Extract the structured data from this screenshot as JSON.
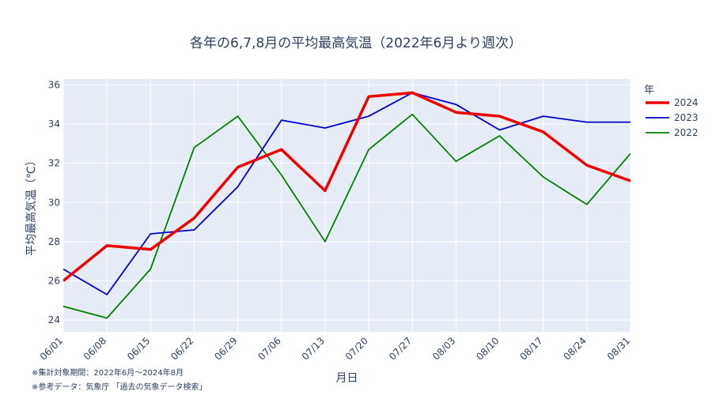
{
  "chart_data": {
    "type": "line",
    "title": "各年の6,7,8月の平均最高気温（2022年6月より週次）",
    "xlabel": "月日",
    "ylabel": "平均最高気温（℃）",
    "categories": [
      "06/01",
      "06/08",
      "06/15",
      "06/22",
      "06/29",
      "07/06",
      "07/13",
      "07/20",
      "07/27",
      "08/03",
      "08/10",
      "08/17",
      "08/24",
      "08/31"
    ],
    "y_ticks": [
      24,
      26,
      28,
      30,
      32,
      34,
      36
    ],
    "ylim": [
      23.4,
      36.3
    ],
    "grid": true,
    "legend_title": "年",
    "legend_position": "top-right",
    "series": [
      {
        "name": "2024",
        "color": "#ee0000",
        "width": 3.5,
        "values": [
          26.0,
          27.8,
          27.6,
          29.2,
          31.8,
          32.7,
          30.6,
          35.4,
          35.6,
          34.6,
          34.4,
          33.6,
          31.9,
          31.1
        ]
      },
      {
        "name": "2023",
        "color": "#0000cc",
        "width": 1.8,
        "values": [
          26.6,
          25.3,
          28.4,
          28.6,
          30.8,
          34.2,
          33.8,
          34.4,
          35.6,
          35.0,
          33.7,
          34.4,
          34.1,
          34.1
        ]
      },
      {
        "name": "2022",
        "color": "#008000",
        "width": 1.8,
        "values": [
          24.7,
          24.1,
          26.6,
          32.8,
          34.4,
          31.4,
          28.0,
          32.7,
          34.5,
          32.1,
          33.4,
          31.3,
          29.9,
          32.5
        ]
      }
    ]
  },
  "notes": [
    "※集計対象期間：2022年6月〜2024年8月",
    "※参考データ：気象庁 「過去の気象データ検索」"
  ]
}
